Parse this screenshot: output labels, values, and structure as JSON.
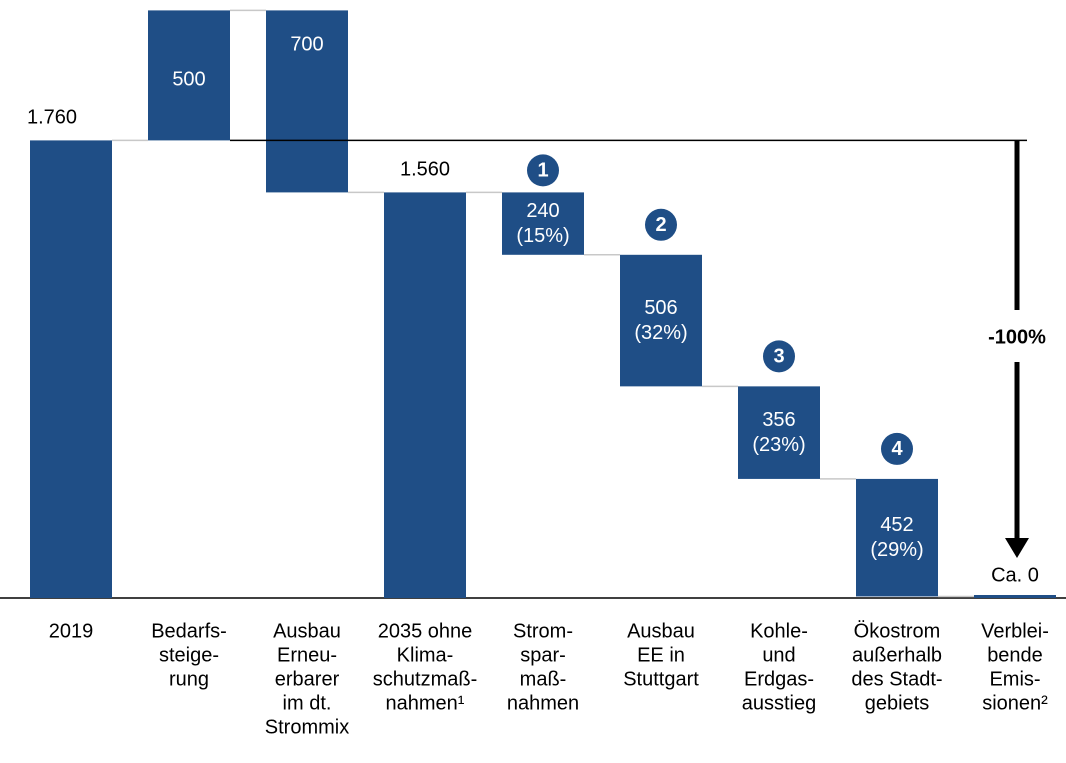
{
  "chart_data": {
    "type": "waterfall",
    "categories": [
      [
        "2019"
      ],
      [
        "Bedarfs-",
        "steige-",
        "rung"
      ],
      [
        "Ausbau",
        "Erneu-",
        "erbarer",
        "im dt.",
        "Strommix"
      ],
      [
        "2035 ohne",
        "Klima-",
        "schutzmaß-",
        "nahmen¹"
      ],
      [
        "Strom-",
        "spar-",
        "maß-",
        "nahmen"
      ],
      [
        "Ausbau",
        "EE in",
        "Stuttgart"
      ],
      [
        "Kohle-",
        "und",
        "Erdgas-",
        "ausstieg"
      ],
      [
        "Ökostrom",
        "außerhalb",
        "des Stadt-",
        "gebiets"
      ],
      [
        "Verblei-",
        "bende",
        "Emis-",
        "sionen²"
      ]
    ],
    "measures": [
      "total",
      "increase",
      "decrease",
      "total",
      "decrease",
      "decrease",
      "decrease",
      "decrease",
      "total"
    ],
    "values": [
      1760,
      500,
      700,
      1560,
      240,
      506,
      356,
      452,
      0
    ],
    "value_labels": [
      "1.760",
      "500",
      "700",
      "1.560",
      "240",
      "506",
      "356",
      "452",
      "Ca. 0"
    ],
    "shares": [
      null,
      null,
      null,
      null,
      15,
      32,
      23,
      29,
      null
    ],
    "share_labels": [
      null,
      null,
      null,
      null,
      "(15%)",
      "(32%)",
      "(23%)",
      "(29%)",
      null
    ],
    "step_numbers": [
      null,
      null,
      null,
      null,
      1,
      2,
      3,
      4,
      null
    ],
    "annotation": "-100%",
    "color": "#1f4e86",
    "ylim": [
      0,
      2300
    ]
  }
}
